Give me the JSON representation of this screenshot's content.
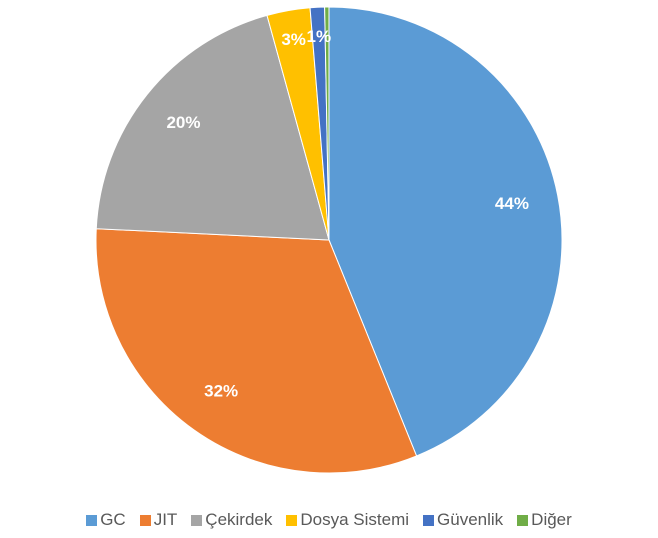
{
  "chart_data": {
    "type": "pie",
    "categories": [
      "GC",
      "JIT",
      "Çekirdek",
      "Dosya Sistemi",
      "Güvenlik",
      "Diğer"
    ],
    "values": [
      44,
      32,
      20,
      3,
      1,
      0.3
    ],
    "value_labels": [
      "44%",
      "32%",
      "20%",
      "3%",
      "1%",
      null
    ],
    "colors": [
      "#5b9bd5",
      "#ed7d31",
      "#a5a5a5",
      "#ffc000",
      "#4472c4",
      "#70ad47"
    ],
    "legend": "bottom"
  }
}
